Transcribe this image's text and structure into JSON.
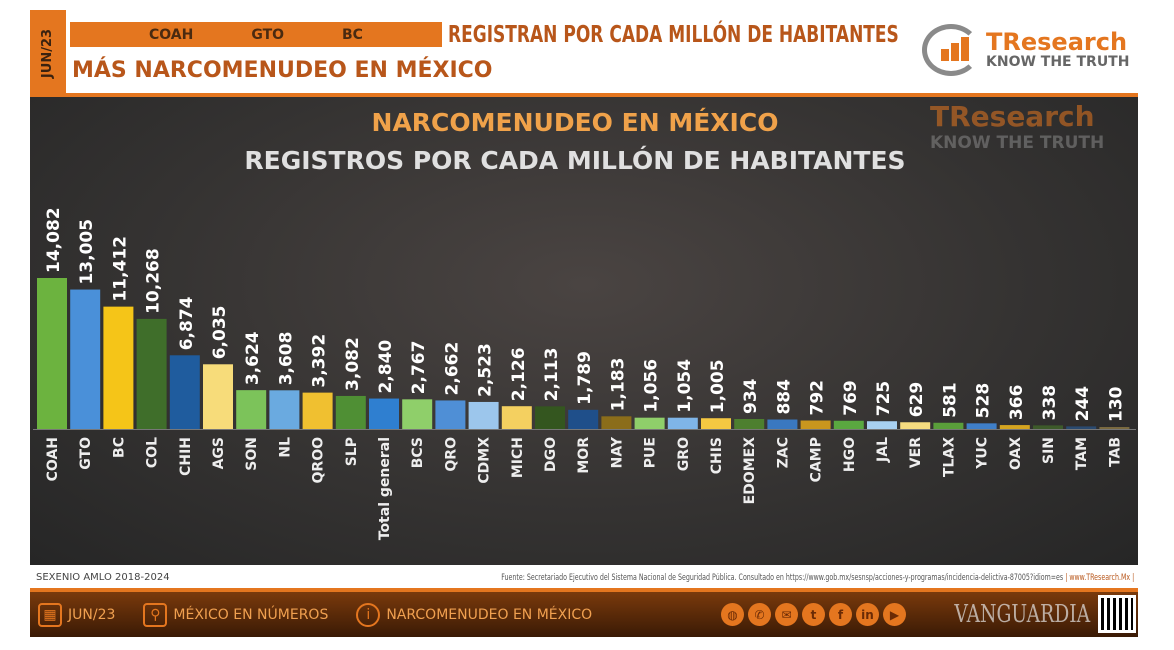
{
  "header": {
    "date_tag": "JUN/23",
    "top_states": [
      "COAH",
      "GTO",
      "BC"
    ],
    "headline": "REGISTRAN POR CADA MILLÓN DE HABITANTES",
    "subheadline": "MÁS NARCOMENUDEO EN MÉXICO",
    "logo_name": "TResearch",
    "logo_tagline": "KNOW THE TRUTH"
  },
  "colors": {
    "accent": "#e4761f",
    "panel": "#353332"
  },
  "chart_data": {
    "type": "bar",
    "title": "NARCOMENUDEO EN MÉXICO",
    "subtitle": "REGISTROS POR CADA MILLÓN DE HABITANTES",
    "xlabel": "",
    "ylabel": "",
    "categories": [
      "COAH",
      "GTO",
      "BC",
      "COL",
      "CHIH",
      "AGS",
      "SON",
      "NL",
      "QROO",
      "SLP",
      "Total general",
      "BCS",
      "QRO",
      "CDMX",
      "MICH",
      "DGO",
      "MOR",
      "NAY",
      "PUE",
      "GRO",
      "CHIS",
      "EDOMEX",
      "ZAC",
      "CAMP",
      "HGO",
      "JAL",
      "VER",
      "TLAX",
      "YUC",
      "OAX",
      "SIN",
      "TAM",
      "TAB"
    ],
    "values": [
      14082,
      13005,
      11412,
      10268,
      6874,
      6035,
      3624,
      3608,
      3392,
      3082,
      2840,
      2767,
      2662,
      2523,
      2126,
      2113,
      1789,
      1183,
      1056,
      1054,
      1005,
      934,
      884,
      792,
      769,
      725,
      629,
      581,
      528,
      366,
      338,
      244,
      130
    ],
    "labels": [
      "14,082",
      "13,005",
      "11,412",
      "10,268",
      "6,874",
      "6,035",
      "3,624",
      "3,608",
      "3,392",
      "3,082",
      "2,840",
      "2,767",
      "2,662",
      "2,523",
      "2,126",
      "2,113",
      "1,789",
      "1,183",
      "1,056",
      "1,054",
      "1,005",
      "934",
      "884",
      "792",
      "769",
      "725",
      "629",
      "581",
      "528",
      "366",
      "338",
      "244",
      "130"
    ],
    "bar_colors": [
      "#6cb33f",
      "#4a90d9",
      "#f5c518",
      "#3f6e2a",
      "#1f5c9e",
      "#f7dc7a",
      "#7cc35a",
      "#6aaae0",
      "#f0c030",
      "#4f8f34",
      "#2f7fd0",
      "#8fcf6a",
      "#4f8fd6",
      "#9cc6ec",
      "#f4d060",
      "#34561f",
      "#1f4f8a",
      "#8b6d1a",
      "#8fcf6a",
      "#7fb5e8",
      "#f5c842",
      "#4d7f2f",
      "#3a78c0",
      "#c9961e",
      "#5aa840",
      "#a8d0f0",
      "#f5dc80",
      "#5a9e3a",
      "#3f7fc8",
      "#d4a420",
      "#3d5a2a",
      "#2a4a70",
      "#7a6a40"
    ],
    "ylim": [
      0,
      14082
    ],
    "grid": false,
    "legend": "none"
  },
  "footer": {
    "period": "SEXENIO AMLO 2018-2024",
    "source_label": "Fuente:",
    "source": "Secretariado Ejecutivo del Sistema Nacional de Seguridad Pública.",
    "consulted": "Consultado en https://www.gob.mx/sesnsp/acciones-y-programas/incidencia-delictiva-87005?idiom=es",
    "site": "| www.TResearch.Mx |"
  },
  "bottom": {
    "items": [
      {
        "icon": "calendar-icon",
        "label": "JUN/23"
      },
      {
        "icon": "map-pin-icon",
        "label": "MÉXICO EN NÚMEROS"
      },
      {
        "icon": "chat-icon",
        "label": "NARCOMENUDEO EN MÉXICO"
      }
    ],
    "social": [
      "globe-icon",
      "phone-icon",
      "mail-icon",
      "twitter-icon",
      "facebook-icon",
      "linkedin-icon",
      "youtube-icon"
    ],
    "watermark": "VANGUARDIA"
  }
}
